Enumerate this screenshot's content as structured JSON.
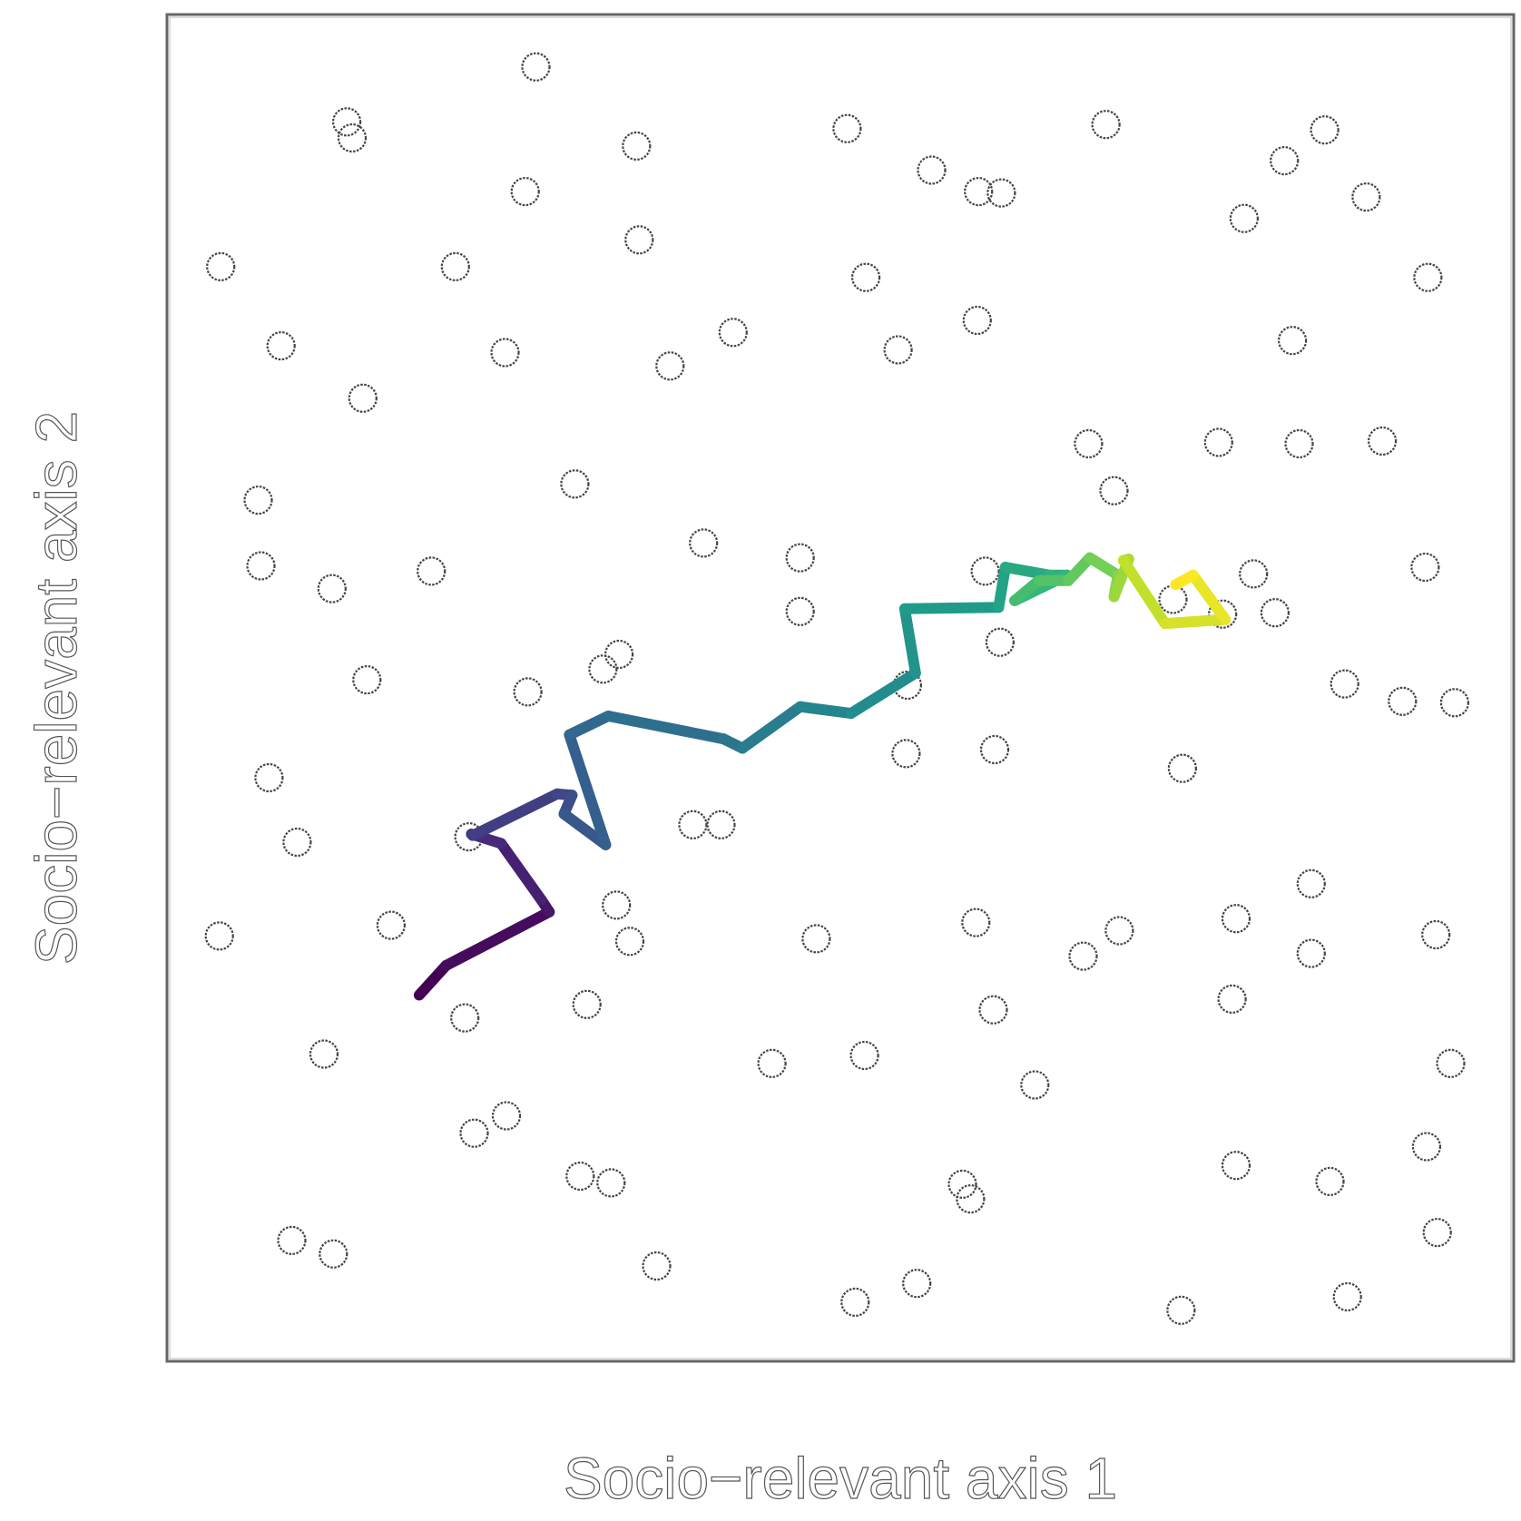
{
  "chart_data": {
    "type": "scatter",
    "title": "",
    "xlabel": "Socio−relevant axis 1",
    "ylabel": "Socio−relevant axis 2",
    "xlim": [
      0,
      1
    ],
    "ylim": [
      0,
      1
    ],
    "grid": false,
    "legend": "none",
    "series": [
      {
        "kind": "scatter",
        "marker": "hollow-circle",
        "color": "#444444",
        "points": [
          [
            0.273,
            0.963
          ],
          [
            0.132,
            0.922
          ],
          [
            0.136,
            0.91
          ],
          [
            0.348,
            0.904
          ],
          [
            0.265,
            0.87
          ],
          [
            0.505,
            0.917
          ],
          [
            0.568,
            0.886
          ],
          [
            0.603,
            0.87
          ],
          [
            0.62,
            0.869
          ],
          [
            0.698,
            0.92
          ],
          [
            0.861,
            0.916
          ],
          [
            0.831,
            0.893
          ],
          [
            0.801,
            0.85
          ],
          [
            0.892,
            0.866
          ],
          [
            0.038,
            0.814
          ],
          [
            0.213,
            0.814
          ],
          [
            0.35,
            0.834
          ],
          [
            0.519,
            0.806
          ],
          [
            0.938,
            0.806
          ],
          [
            0.083,
            0.755
          ],
          [
            0.25,
            0.75
          ],
          [
            0.373,
            0.74
          ],
          [
            0.42,
            0.765
          ],
          [
            0.543,
            0.752
          ],
          [
            0.602,
            0.774
          ],
          [
            0.837,
            0.759
          ],
          [
            0.144,
            0.716
          ],
          [
            0.685,
            0.682
          ],
          [
            0.782,
            0.683
          ],
          [
            0.842,
            0.682
          ],
          [
            0.904,
            0.684
          ],
          [
            0.704,
            0.647
          ],
          [
            0.302,
            0.652
          ],
          [
            0.066,
            0.64
          ],
          [
            0.398,
            0.608
          ],
          [
            0.47,
            0.597
          ],
          [
            0.068,
            0.591
          ],
          [
            0.121,
            0.574
          ],
          [
            0.195,
            0.587
          ],
          [
            0.608,
            0.587
          ],
          [
            0.808,
            0.585
          ],
          [
            0.785,
            0.555
          ],
          [
            0.936,
            0.59
          ],
          [
            0.824,
            0.556
          ],
          [
            0.47,
            0.557
          ],
          [
            0.619,
            0.534
          ],
          [
            0.748,
            0.566
          ],
          [
            0.335,
            0.525
          ],
          [
            0.323,
            0.514
          ],
          [
            0.147,
            0.506
          ],
          [
            0.267,
            0.497
          ],
          [
            0.55,
            0.502
          ],
          [
            0.876,
            0.503
          ],
          [
            0.919,
            0.49
          ],
          [
            0.958,
            0.489
          ],
          [
            0.074,
            0.433
          ],
          [
            0.549,
            0.451
          ],
          [
            0.615,
            0.454
          ],
          [
            0.755,
            0.44
          ],
          [
            0.39,
            0.398
          ],
          [
            0.411,
            0.398
          ],
          [
            0.095,
            0.385
          ],
          [
            0.223,
            0.389
          ],
          [
            0.333,
            0.338
          ],
          [
            0.343,
            0.311
          ],
          [
            0.037,
            0.315
          ],
          [
            0.165,
            0.323
          ],
          [
            0.482,
            0.313
          ],
          [
            0.601,
            0.325
          ],
          [
            0.681,
            0.3
          ],
          [
            0.708,
            0.319
          ],
          [
            0.851,
            0.354
          ],
          [
            0.795,
            0.328
          ],
          [
            0.851,
            0.302
          ],
          [
            0.944,
            0.316
          ],
          [
            0.22,
            0.254
          ],
          [
            0.311,
            0.264
          ],
          [
            0.614,
            0.26
          ],
          [
            0.792,
            0.268
          ],
          [
            0.115,
            0.227
          ],
          [
            0.449,
            0.22
          ],
          [
            0.518,
            0.226
          ],
          [
            0.645,
            0.204
          ],
          [
            0.955,
            0.22
          ],
          [
            0.227,
            0.168
          ],
          [
            0.251,
            0.181
          ],
          [
            0.306,
            0.136
          ],
          [
            0.329,
            0.131
          ],
          [
            0.591,
            0.13
          ],
          [
            0.597,
            0.119
          ],
          [
            0.795,
            0.144
          ],
          [
            0.865,
            0.132
          ],
          [
            0.937,
            0.158
          ],
          [
            0.091,
            0.088
          ],
          [
            0.122,
            0.078
          ],
          [
            0.363,
            0.069
          ],
          [
            0.511,
            0.042
          ],
          [
            0.557,
            0.056
          ],
          [
            0.754,
            0.036
          ],
          [
            0.878,
            0.046
          ],
          [
            0.945,
            0.094
          ]
        ]
      },
      {
        "kind": "trajectory",
        "colormap": "viridis",
        "color_start": "#440154",
        "color_end": "#fde725",
        "points": [
          [
            0.186,
            0.271
          ],
          [
            0.206,
            0.293
          ],
          [
            0.283,
            0.333
          ],
          [
            0.277,
            0.342
          ],
          [
            0.247,
            0.384
          ],
          [
            0.225,
            0.391
          ],
          [
            0.226,
            0.39
          ],
          [
            0.289,
            0.421
          ],
          [
            0.3,
            0.42
          ],
          [
            0.294,
            0.406
          ],
          [
            0.325,
            0.383
          ],
          [
            0.298,
            0.465
          ],
          [
            0.327,
            0.479
          ],
          [
            0.413,
            0.462
          ],
          [
            0.427,
            0.455
          ],
          [
            0.47,
            0.486
          ],
          [
            0.508,
            0.481
          ],
          [
            0.556,
            0.511
          ],
          [
            0.548,
            0.559
          ],
          [
            0.618,
            0.56
          ],
          [
            0.623,
            0.59
          ],
          [
            0.656,
            0.584
          ],
          [
            0.669,
            0.584
          ],
          [
            0.63,
            0.565
          ],
          [
            0.648,
            0.58
          ],
          [
            0.67,
            0.58
          ],
          [
            0.686,
            0.597
          ],
          [
            0.707,
            0.584
          ],
          [
            0.704,
            0.568
          ],
          [
            0.715,
            0.596
          ],
          [
            0.711,
            0.595
          ],
          [
            0.742,
            0.548
          ],
          [
            0.787,
            0.551
          ],
          [
            0.763,
            0.584
          ],
          [
            0.75,
            0.577
          ]
        ]
      }
    ]
  }
}
